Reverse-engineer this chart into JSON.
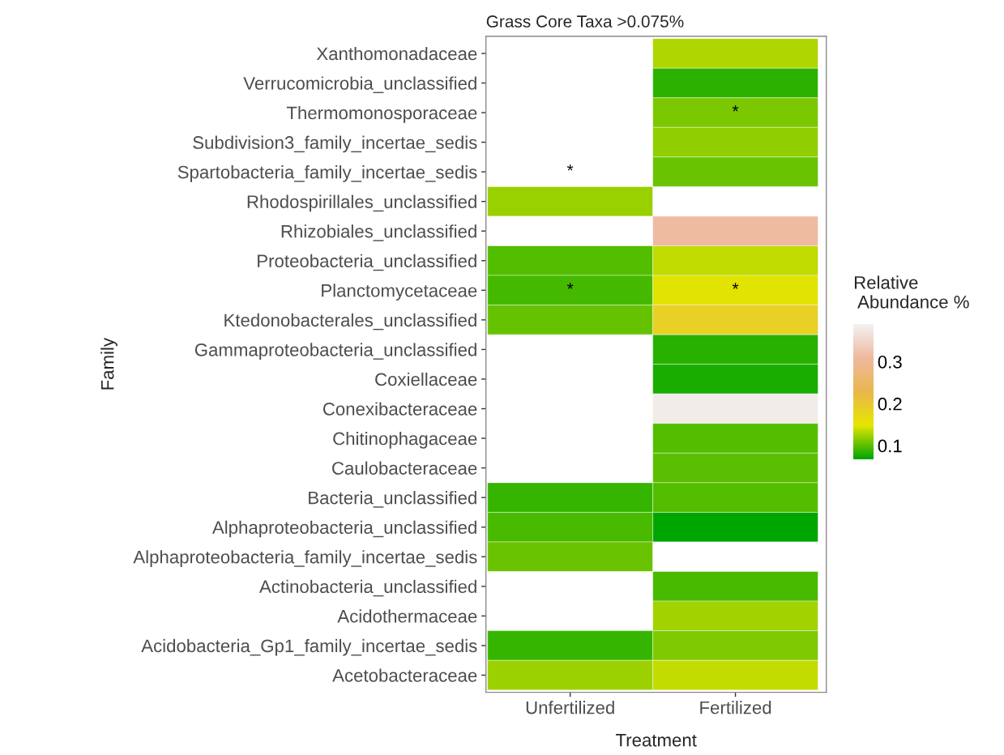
{
  "chart_data": {
    "type": "heatmap",
    "title": "Grass Core Taxa >0.075%",
    "xlabel": "Treatment",
    "ylabel": "Family",
    "clabel": "Relative\n Abundance %",
    "categories": [
      "Unfertilized",
      "Fertilized"
    ],
    "y_categories": [
      "Xanthomonadaceae",
      "Verrucomicrobia_unclassified",
      "Thermomonosporaceae",
      "Subdivision3_family_incertae_sedis",
      "Spartobacteria_family_incertae_sedis",
      "Rhodospirillales_unclassified",
      "Rhizobiales_unclassified",
      "Proteobacteria_unclassified",
      "Planctomycetaceae",
      "Ktedonobacterales_unclassified",
      "Gammaproteobacteria_unclassified",
      "Coxiellaceae",
      "Conexibacteraceae",
      "Chitinophagaceae",
      "Caulobacteraceae",
      "Bacteria_unclassified",
      "Alphaproteobacteria_unclassified",
      "Alphaproteobacteria_family_incertae_sedis",
      "Actinobacteria_unclassified",
      "Acidothermaceae",
      "Acidobacteria_Gp1_family_incertae_sedis",
      "Acetobacteraceae"
    ],
    "cells": [
      [
        null,
        0.129
      ],
      [
        null,
        0.084
      ],
      [
        null,
        0.111
      ],
      [
        null,
        0.119
      ],
      [
        null,
        0.105
      ],
      [
        0.121,
        null
      ],
      [
        null,
        0.31
      ],
      [
        0.097,
        0.135
      ],
      [
        0.092,
        0.147
      ],
      [
        0.104,
        0.185
      ],
      [
        null,
        0.083
      ],
      [
        null,
        0.078
      ],
      [
        null,
        0.38
      ],
      [
        null,
        0.097
      ],
      [
        null,
        0.1
      ],
      [
        0.088,
        0.097
      ],
      [
        0.094,
        0.068
      ],
      [
        0.105,
        null
      ],
      [
        null,
        0.094
      ],
      [
        null,
        0.125
      ],
      [
        0.087,
        0.113
      ],
      [
        0.123,
        0.136
      ]
    ],
    "clim": [
      0.068,
      0.39
    ],
    "cticks": [
      0.1,
      0.2,
      0.3
    ],
    "cell_labels": [
      [
        null,
        null
      ],
      [
        null,
        null
      ],
      [
        null,
        "*"
      ],
      [
        null,
        null
      ],
      [
        "*",
        null
      ],
      [
        null,
        null
      ],
      [
        null,
        null
      ],
      [
        null,
        null
      ],
      [
        "*",
        "*"
      ],
      [
        null,
        null
      ],
      [
        null,
        null
      ],
      [
        null,
        null
      ],
      [
        null,
        null
      ],
      [
        null,
        null
      ],
      [
        null,
        null
      ],
      [
        null,
        null
      ],
      [
        null,
        null
      ],
      [
        null,
        null
      ],
      [
        null,
        null
      ],
      [
        null,
        null
      ],
      [
        null,
        null
      ],
      [
        null,
        null
      ]
    ]
  }
}
